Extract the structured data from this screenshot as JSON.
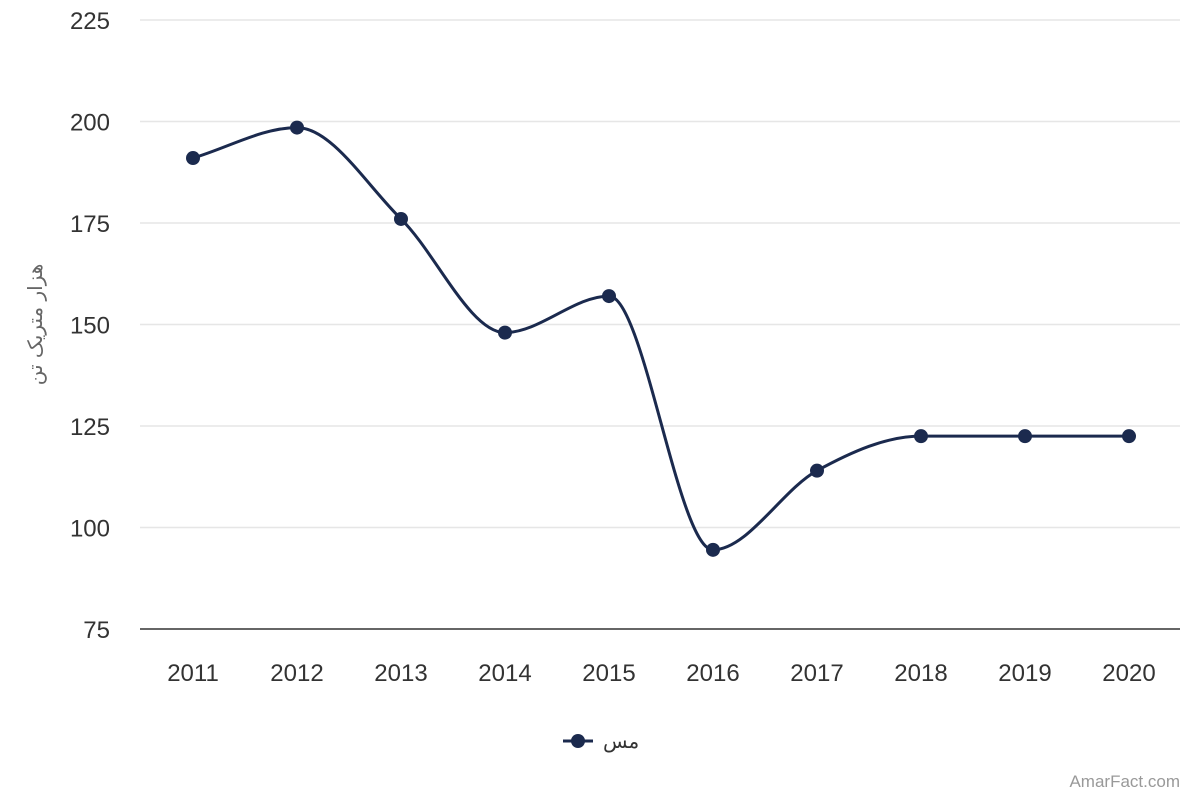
{
  "chart_data": {
    "type": "line",
    "title": "",
    "xlabel": "",
    "ylabel": "هزار متریک تن",
    "categories": [
      "2011",
      "2012",
      "2013",
      "2014",
      "2015",
      "2016",
      "2017",
      "2018",
      "2019",
      "2020"
    ],
    "series": [
      {
        "name": "مس",
        "values": [
          191,
          198.5,
          176,
          148,
          157,
          94.5,
          114,
          122.5,
          122.5,
          122.5
        ],
        "color": "#1b2a4e"
      }
    ],
    "ylim": [
      75,
      225
    ],
    "yticks": [
      75,
      100,
      125,
      150,
      175,
      200,
      225
    ],
    "grid": true,
    "legend_position": "bottom-center",
    "smooth": true
  },
  "credit": "AmarFact.com"
}
